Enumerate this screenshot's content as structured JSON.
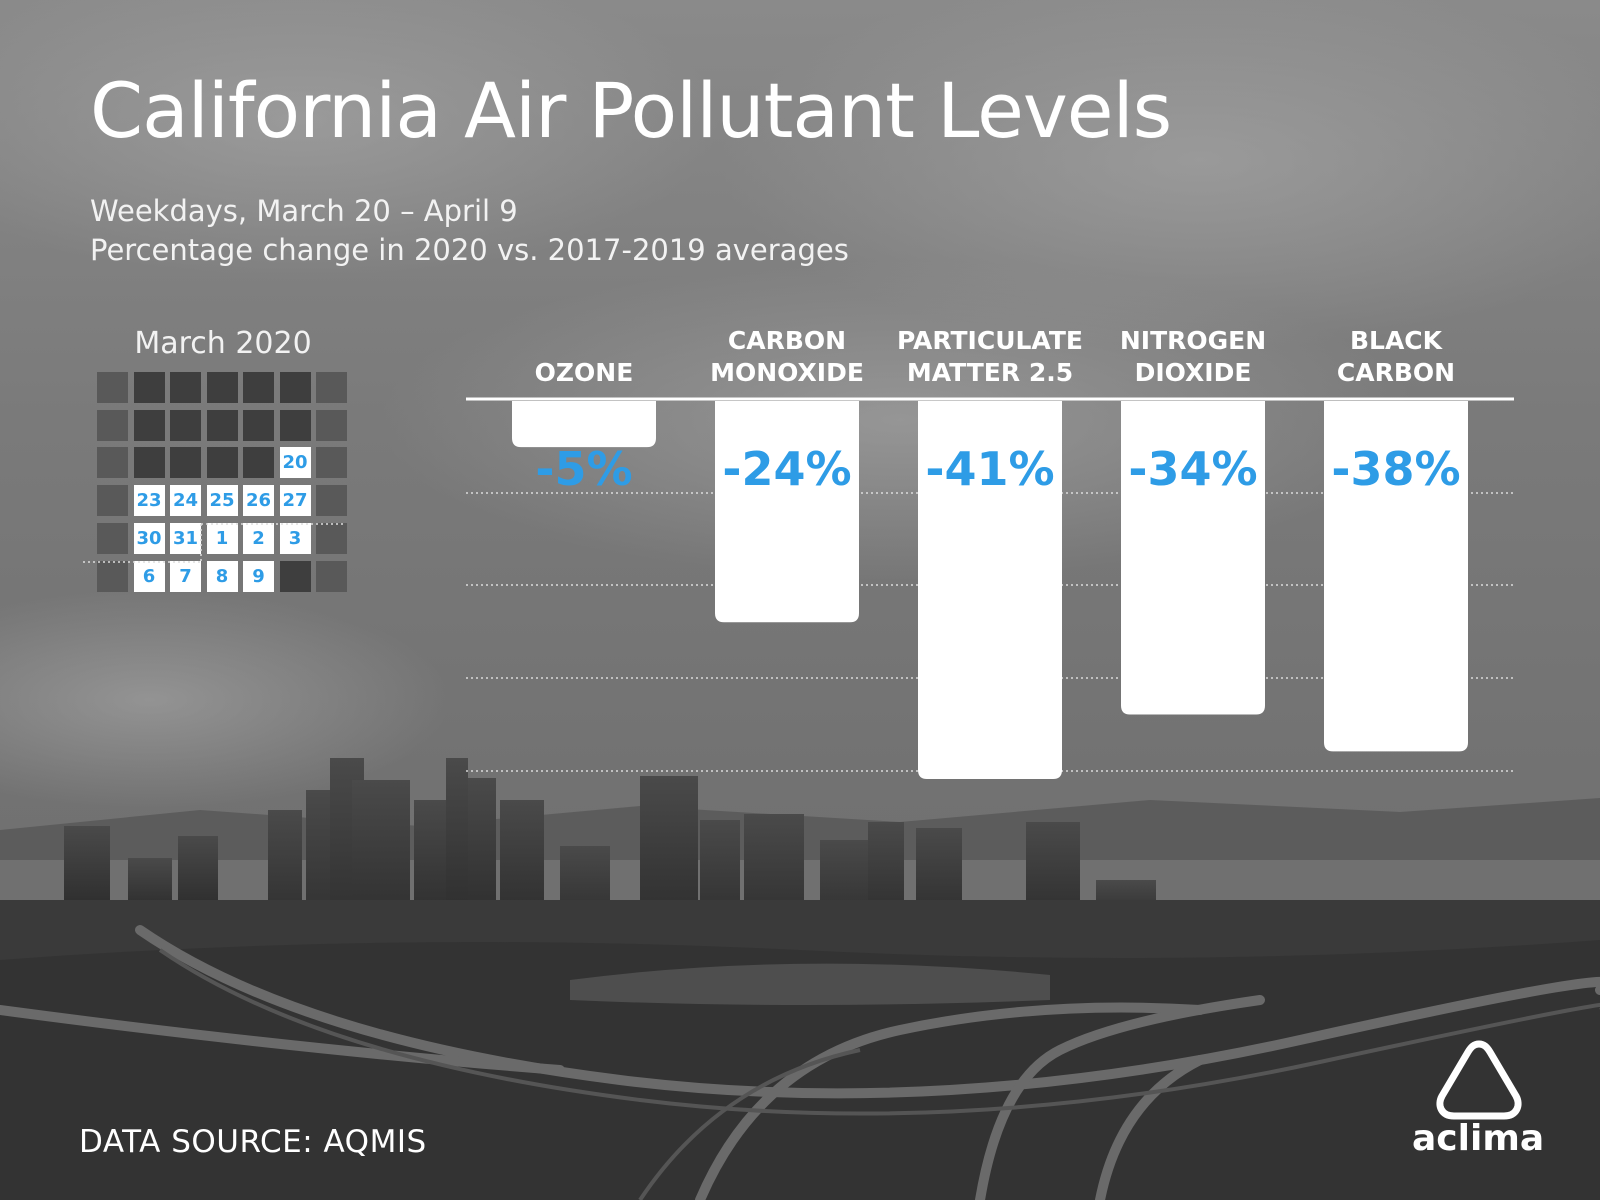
{
  "header": {
    "title": "California Air Pollutant Levels",
    "subtitle_line1": "Weekdays, March 20 – April 9",
    "subtitle_line2": "Percentage change in 2020 vs. 2017-2019 averages"
  },
  "calendar": {
    "title": "March 2020",
    "weeks": [
      [
        "",
        "",
        "",
        "",
        "",
        "",
        ""
      ],
      [
        "",
        "",
        "",
        "",
        "",
        "",
        ""
      ],
      [
        "",
        "",
        "",
        "",
        "",
        "20",
        ""
      ],
      [
        "",
        "23",
        "24",
        "25",
        "26",
        "27",
        ""
      ],
      [
        "",
        "30",
        "31",
        "1",
        "2",
        "3",
        ""
      ],
      [
        "",
        "6",
        "7",
        "8",
        "9",
        "",
        ""
      ]
    ]
  },
  "chart_data": {
    "type": "bar",
    "categories": [
      [
        "OZONE"
      ],
      [
        "CARBON",
        "MONOXIDE"
      ],
      [
        "PARTICULATE",
        "MATTER 2.5"
      ],
      [
        "NITROGEN",
        "DIOXIDE"
      ],
      [
        "BLACK",
        "CARBON"
      ]
    ],
    "values": [
      -5,
      -24,
      -41,
      -34,
      -38
    ],
    "value_labels": [
      "-5%",
      "-24%",
      "-41%",
      "-34%",
      "-38%"
    ],
    "ylim": [
      -41,
      0
    ],
    "grid": true,
    "colors": {
      "bar": "#ffffff",
      "label": "#2e9ce6"
    }
  },
  "footer": {
    "source": "DATA SOURCE: AQMIS"
  },
  "brand": {
    "name": "aclima",
    "icon": "aclima-triangle-logo-icon"
  }
}
